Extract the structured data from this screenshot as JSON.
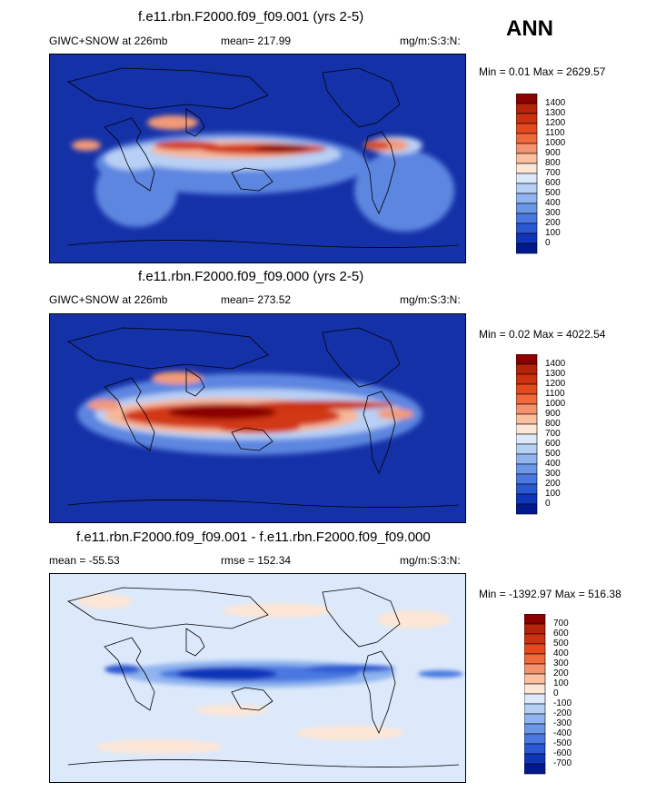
{
  "season": "ANN",
  "panels": [
    {
      "title": "f.e11.rbn.F2000.f09_f09.001 (yrs 2-5)",
      "left": "GIWC+SNOW at 226mb",
      "center": "mean= 217.99",
      "units": "mg/m:S:3:N:",
      "minmax": "Min =   0.01 Max = 2629.57",
      "cbar_labels": [
        "1400",
        "1300",
        "1200",
        "1100",
        "1000",
        "900",
        "800",
        "700",
        "600",
        "500",
        "400",
        "300",
        "200",
        "100",
        "0"
      ],
      "cbar_colors": [
        "#8b0000",
        "#b5230b",
        "#cc3210",
        "#e44a1e",
        "#f06a3c",
        "#f59270",
        "#fac0a0",
        "#fde6d6",
        "#dce9fa",
        "#b5d0f4",
        "#8fb4ee",
        "#6b97e8",
        "#4a78e0",
        "#2a58d2",
        "#0f36b8",
        "#001a8e"
      ]
    },
    {
      "title": "f.e11.rbn.F2000.f09_f09.000 (yrs 2-5)",
      "left": "GIWC+SNOW at 226mb",
      "center": "mean= 273.52",
      "units": "mg/m:S:3:N:",
      "minmax": "Min =   0.02 Max = 4022.54",
      "cbar_labels": [
        "1400",
        "1300",
        "1200",
        "1100",
        "1000",
        "900",
        "800",
        "700",
        "600",
        "500",
        "400",
        "300",
        "200",
        "100",
        "0"
      ],
      "cbar_colors": [
        "#8b0000",
        "#b5230b",
        "#cc3210",
        "#e44a1e",
        "#f06a3c",
        "#f59270",
        "#fac0a0",
        "#fde6d6",
        "#dce9fa",
        "#b5d0f4",
        "#8fb4ee",
        "#6b97e8",
        "#4a78e0",
        "#2a58d2",
        "#0f36b8",
        "#001a8e"
      ]
    },
    {
      "title": "f.e11.rbn.F2000.f09_f09.001 - f.e11.rbn.F2000.f09_f09.000",
      "left": "mean = -55.53",
      "center": "rmse = 152.34",
      "units": "mg/m:S:3:N:",
      "minmax": "Min = -1392.97 Max = 516.38",
      "cbar_labels": [
        "700",
        "600",
        "500",
        "400",
        "300",
        "200",
        "100",
        "0",
        "-100",
        "-200",
        "-300",
        "-400",
        "-500",
        "-600",
        "-700"
      ],
      "cbar_colors": [
        "#8b0000",
        "#b5230b",
        "#cc3210",
        "#e44a1e",
        "#f06a3c",
        "#f59270",
        "#fac0a0",
        "#fde6d6",
        "#dce9fa",
        "#b5d0f4",
        "#8fb4ee",
        "#6b97e8",
        "#4a78e0",
        "#2a58d2",
        "#0f36b8",
        "#001a8e"
      ]
    }
  ]
}
